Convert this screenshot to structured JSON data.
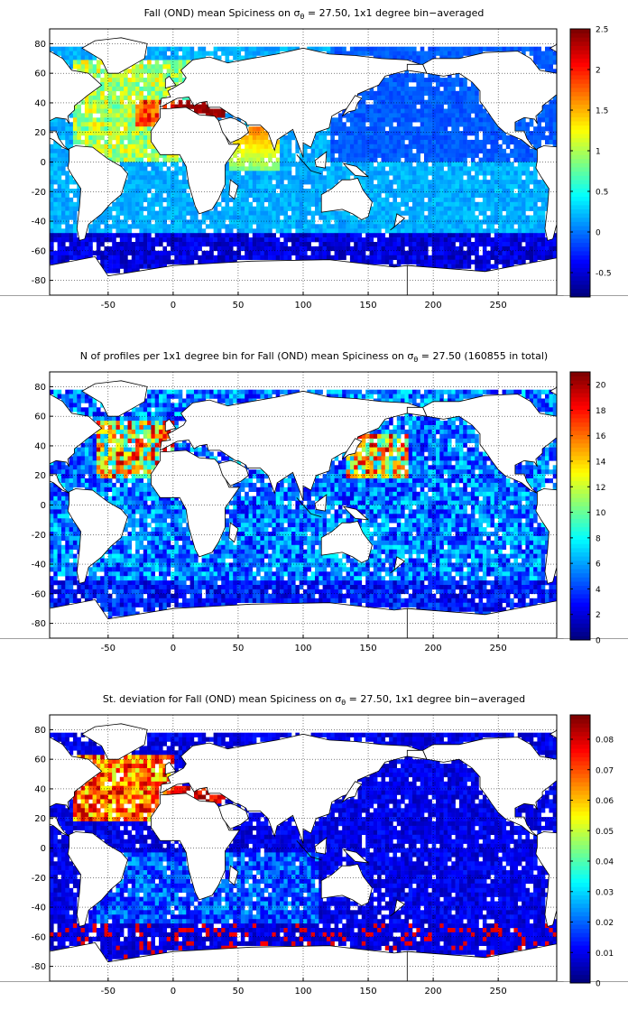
{
  "figure": {
    "panels": [
      {
        "id": "mean",
        "title_prefix": "Fall (OND) mean Spiciness on σ",
        "title_sub": "θ",
        "title_suffix": " = 27.50, 1x1 degree bin−averaged",
        "colormap": "jet",
        "field": "mean",
        "colorbar": {
          "min": -0.8,
          "max": 2.5,
          "ticks": [
            "2.5",
            "2",
            "1.5",
            "1",
            "0.5",
            "0",
            "-0.5"
          ],
          "tick_values": [
            2.5,
            2,
            1.5,
            1,
            0.5,
            0,
            -0.5
          ]
        }
      },
      {
        "id": "count",
        "title_prefix": "N of profiles per 1x1 degree bin for Fall (OND) mean Spiciness on σ",
        "title_sub": "θ",
        "title_suffix": " = 27.50 (160855 in total)",
        "colormap": "jet",
        "field": "count",
        "colorbar": {
          "min": 0,
          "max": 21,
          "ticks": [
            "20",
            "18",
            "16",
            "14",
            "12",
            "10",
            "8",
            "6",
            "4",
            "2",
            "0"
          ],
          "tick_values": [
            20,
            18,
            16,
            14,
            12,
            10,
            8,
            6,
            4,
            2,
            0
          ]
        }
      },
      {
        "id": "std",
        "title_prefix": "St. deviation for Fall (OND) mean Spiciness on σ",
        "title_sub": "θ",
        "title_suffix": " = 27.50, 1x1 degree bin−averaged",
        "colormap": "jet",
        "field": "std",
        "colorbar": {
          "min": 0,
          "max": 0.088,
          "ticks": [
            "0.08",
            "0.07",
            "0.06",
            "0.05",
            "0.04",
            "0.03",
            "0.02",
            "0.01",
            "0"
          ],
          "tick_values": [
            0.08,
            0.07,
            0.06,
            0.05,
            0.04,
            0.03,
            0.02,
            0.01,
            0
          ]
        }
      }
    ],
    "axes": {
      "x_range": [
        -95,
        295
      ],
      "y_range": [
        -90,
        90
      ],
      "x_ticks": [
        "-50",
        "0",
        "50",
        "100",
        "150",
        "200",
        "250"
      ],
      "x_tick_values": [
        -50,
        0,
        50,
        100,
        150,
        200,
        250
      ],
      "y_ticks": [
        "80",
        "60",
        "40",
        "20",
        "0",
        "-20",
        "-40",
        "-60",
        "-80"
      ],
      "y_tick_values": [
        80,
        60,
        40,
        20,
        0,
        -20,
        -40,
        -60,
        -80
      ],
      "grid": "dotted"
    }
  }
}
